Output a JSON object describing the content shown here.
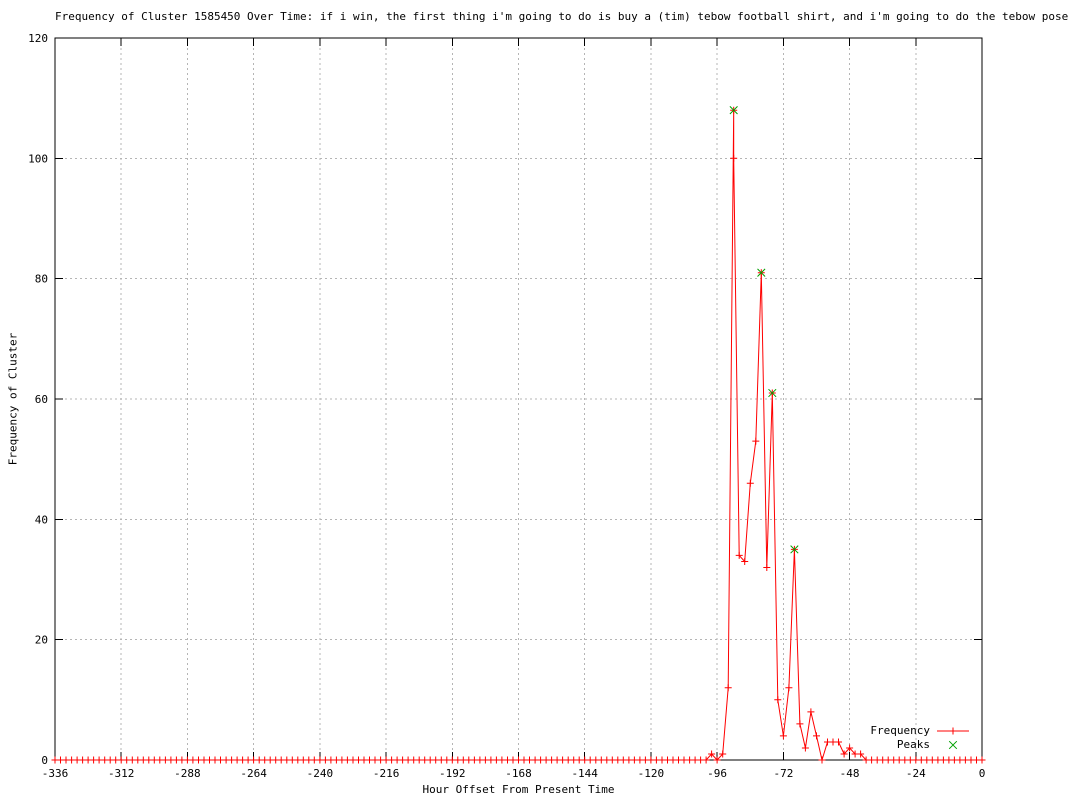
{
  "chart_data": {
    "type": "line",
    "title": "Frequency of Cluster 1585450 Over Time: if i win, the first thing i'm going to do is buy a (tim) tebow football shirt, and i'm going to do the tebow pose",
    "xlabel": "Hour Offset From Present Time",
    "ylabel": "Frequency of Cluster",
    "xlim": [
      -336,
      0
    ],
    "ylim": [
      0,
      120
    ],
    "x_ticks": [
      -336,
      -312,
      -288,
      -264,
      -240,
      -216,
      -192,
      -168,
      -144,
      -120,
      -96,
      -72,
      -48,
      -24,
      0
    ],
    "y_ticks": [
      0,
      20,
      40,
      60,
      80,
      100,
      120
    ],
    "grid": true,
    "legend_position": "inside-bottom-right",
    "colors": {
      "frequency": "#ff0000",
      "peaks": "#00a000",
      "grid": "#b5b5b5",
      "axis": "#000000",
      "background": "#ffffff"
    },
    "series": [
      {
        "name": "Frequency",
        "style": "lines-with-plus-markers",
        "points": [
          [
            -336,
            0
          ],
          [
            -334,
            0
          ],
          [
            -332,
            0
          ],
          [
            -330,
            0
          ],
          [
            -328,
            0
          ],
          [
            -326,
            0
          ],
          [
            -324,
            0
          ],
          [
            -322,
            0
          ],
          [
            -320,
            0
          ],
          [
            -318,
            0
          ],
          [
            -316,
            0
          ],
          [
            -314,
            0
          ],
          [
            -312,
            0
          ],
          [
            -310,
            0
          ],
          [
            -308,
            0
          ],
          [
            -306,
            0
          ],
          [
            -304,
            0
          ],
          [
            -302,
            0
          ],
          [
            -300,
            0
          ],
          [
            -298,
            0
          ],
          [
            -296,
            0
          ],
          [
            -294,
            0
          ],
          [
            -292,
            0
          ],
          [
            -290,
            0
          ],
          [
            -288,
            0
          ],
          [
            -286,
            0
          ],
          [
            -284,
            0
          ],
          [
            -282,
            0
          ],
          [
            -280,
            0
          ],
          [
            -278,
            0
          ],
          [
            -276,
            0
          ],
          [
            -274,
            0
          ],
          [
            -272,
            0
          ],
          [
            -270,
            0
          ],
          [
            -268,
            0
          ],
          [
            -266,
            0
          ],
          [
            -264,
            0
          ],
          [
            -262,
            0
          ],
          [
            -260,
            0
          ],
          [
            -258,
            0
          ],
          [
            -256,
            0
          ],
          [
            -254,
            0
          ],
          [
            -252,
            0
          ],
          [
            -250,
            0
          ],
          [
            -248,
            0
          ],
          [
            -246,
            0
          ],
          [
            -244,
            0
          ],
          [
            -242,
            0
          ],
          [
            -240,
            0
          ],
          [
            -238,
            0
          ],
          [
            -236,
            0
          ],
          [
            -234,
            0
          ],
          [
            -232,
            0
          ],
          [
            -230,
            0
          ],
          [
            -228,
            0
          ],
          [
            -226,
            0
          ],
          [
            -224,
            0
          ],
          [
            -222,
            0
          ],
          [
            -220,
            0
          ],
          [
            -218,
            0
          ],
          [
            -216,
            0
          ],
          [
            -214,
            0
          ],
          [
            -212,
            0
          ],
          [
            -210,
            0
          ],
          [
            -208,
            0
          ],
          [
            -206,
            0
          ],
          [
            -204,
            0
          ],
          [
            -202,
            0
          ],
          [
            -200,
            0
          ],
          [
            -198,
            0
          ],
          [
            -196,
            0
          ],
          [
            -194,
            0
          ],
          [
            -192,
            0
          ],
          [
            -190,
            0
          ],
          [
            -188,
            0
          ],
          [
            -186,
            0
          ],
          [
            -184,
            0
          ],
          [
            -182,
            0
          ],
          [
            -180,
            0
          ],
          [
            -178,
            0
          ],
          [
            -176,
            0
          ],
          [
            -174,
            0
          ],
          [
            -172,
            0
          ],
          [
            -170,
            0
          ],
          [
            -168,
            0
          ],
          [
            -166,
            0
          ],
          [
            -164,
            0
          ],
          [
            -162,
            0
          ],
          [
            -160,
            0
          ],
          [
            -158,
            0
          ],
          [
            -156,
            0
          ],
          [
            -154,
            0
          ],
          [
            -152,
            0
          ],
          [
            -150,
            0
          ],
          [
            -148,
            0
          ],
          [
            -146,
            0
          ],
          [
            -144,
            0
          ],
          [
            -142,
            0
          ],
          [
            -140,
            0
          ],
          [
            -138,
            0
          ],
          [
            -136,
            0
          ],
          [
            -134,
            0
          ],
          [
            -132,
            0
          ],
          [
            -130,
            0
          ],
          [
            -128,
            0
          ],
          [
            -126,
            0
          ],
          [
            -124,
            0
          ],
          [
            -122,
            0
          ],
          [
            -120,
            0
          ],
          [
            -118,
            0
          ],
          [
            -116,
            0
          ],
          [
            -114,
            0
          ],
          [
            -112,
            0
          ],
          [
            -110,
            0
          ],
          [
            -108,
            0
          ],
          [
            -106,
            0
          ],
          [
            -104,
            0
          ],
          [
            -102,
            0
          ],
          [
            -100,
            0
          ],
          [
            -98,
            1
          ],
          [
            -96,
            0
          ],
          [
            -94,
            1
          ],
          [
            -92,
            12
          ],
          [
            -90,
            108
          ],
          [
            -90,
            100
          ],
          [
            -88,
            34
          ],
          [
            -86,
            33
          ],
          [
            -84,
            46
          ],
          [
            -82,
            53
          ],
          [
            -80,
            81
          ],
          [
            -78,
            32
          ],
          [
            -76,
            61
          ],
          [
            -74,
            10
          ],
          [
            -72,
            4
          ],
          [
            -70,
            12
          ],
          [
            -68,
            35
          ],
          [
            -66,
            6
          ],
          [
            -64,
            2
          ],
          [
            -62,
            8
          ],
          [
            -60,
            4
          ],
          [
            -58,
            0
          ],
          [
            -56,
            3
          ],
          [
            -54,
            3
          ],
          [
            -52,
            3
          ],
          [
            -50,
            1
          ],
          [
            -48,
            2
          ],
          [
            -46,
            1
          ],
          [
            -44,
            1
          ],
          [
            -42,
            0
          ],
          [
            -40,
            0
          ],
          [
            -38,
            0
          ],
          [
            -36,
            0
          ],
          [
            -34,
            0
          ],
          [
            -32,
            0
          ],
          [
            -30,
            0
          ],
          [
            -28,
            0
          ],
          [
            -26,
            0
          ],
          [
            -24,
            0
          ],
          [
            -22,
            0
          ],
          [
            -20,
            0
          ],
          [
            -18,
            0
          ],
          [
            -16,
            0
          ],
          [
            -14,
            0
          ],
          [
            -12,
            0
          ],
          [
            -10,
            0
          ],
          [
            -8,
            0
          ],
          [
            -6,
            0
          ],
          [
            -4,
            0
          ],
          [
            -2,
            0
          ],
          [
            0,
            0
          ]
        ]
      },
      {
        "name": "Peaks",
        "style": "x-markers",
        "points": [
          [
            -90,
            108
          ],
          [
            -80,
            81
          ],
          [
            -76,
            61
          ],
          [
            -68,
            35
          ]
        ]
      }
    ]
  }
}
